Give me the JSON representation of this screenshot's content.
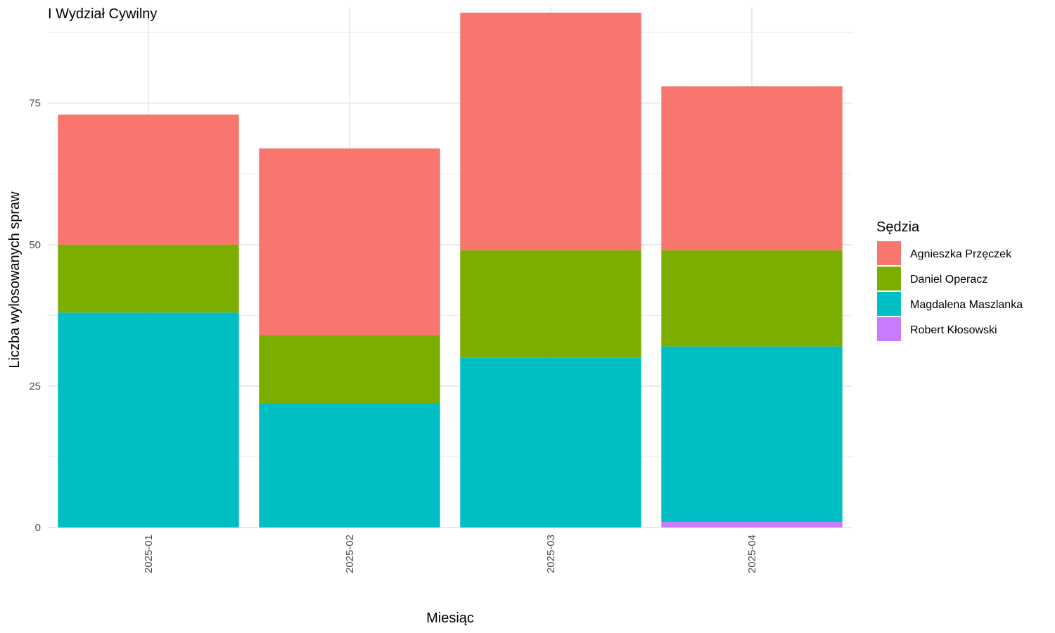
{
  "chart_data": {
    "type": "bar",
    "stacked": true,
    "title": "I Wydział Cywilny",
    "xlabel": "Miesiąc",
    "ylabel": "Liczba wylosowanych spraw",
    "ylim": [
      0,
      92
    ],
    "yticks": [
      0,
      25,
      50,
      75
    ],
    "grid": true,
    "legend_title": "Sędzia",
    "legend_position": "right",
    "categories": [
      "2025-01",
      "2025-02",
      "2025-03",
      "2025-04"
    ],
    "series": [
      {
        "name": "Robert Kłosowski",
        "color": "#C77CFF",
        "values": [
          0,
          0,
          0,
          1
        ]
      },
      {
        "name": "Magdalena Maszlanka",
        "color": "#00BFC4",
        "values": [
          38,
          22,
          30,
          31
        ]
      },
      {
        "name": "Daniel Operacz",
        "color": "#7CAE00",
        "values": [
          12,
          12,
          19,
          17
        ]
      },
      {
        "name": "Agnieszka Przęczek",
        "color": "#F8766D",
        "values": [
          23,
          33,
          42,
          29
        ]
      }
    ],
    "legend_order": [
      "Agnieszka Przęczek",
      "Daniel Operacz",
      "Magdalena Maszlanka",
      "Robert Kłosowski"
    ]
  }
}
